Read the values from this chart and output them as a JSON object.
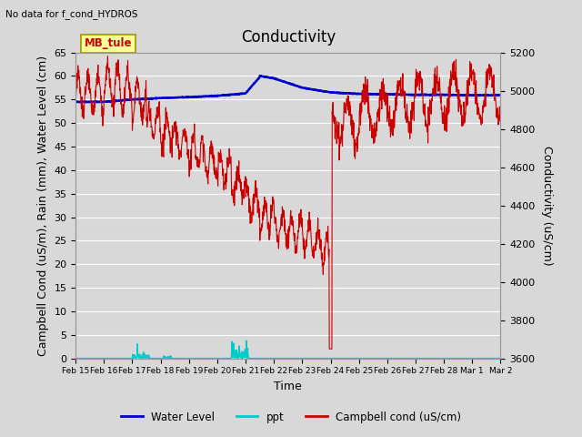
{
  "title": "Conductivity",
  "top_left_text": "No data for f_cond_HYDROS",
  "station_label": "MB_tule",
  "xlabel": "Time",
  "ylabel_left": "Campbell Cond (uS/m), Rain (mm), Water Level (cm)",
  "ylabel_right": "Conductivity (uS/cm)",
  "ylim_left": [
    0,
    65
  ],
  "ylim_right": [
    3600,
    5200
  ],
  "yticks_left": [
    0,
    5,
    10,
    15,
    20,
    25,
    30,
    35,
    40,
    45,
    50,
    55,
    60,
    65
  ],
  "yticks_right": [
    3600,
    3800,
    4000,
    4200,
    4400,
    4600,
    4800,
    5000,
    5200
  ],
  "xtick_labels": [
    "Feb 15",
    "Feb 16",
    "Feb 17",
    "Feb 18",
    "Feb 19",
    "Feb 20",
    "Feb 21",
    "Feb 22",
    "Feb 23",
    "Feb 24",
    "Feb 25",
    "Feb 26",
    "Feb 27",
    "Feb 28",
    "Mar 1",
    "Mar 2"
  ],
  "background_color": "#d8d8d8",
  "plot_bg_color": "#d8d8d8",
  "grid_color": "#ffffff",
  "water_level_color": "#0000cc",
  "ppt_color": "#00cccc",
  "campbell_color": "#cc0000",
  "legend_entries": [
    "Water Level",
    "ppt",
    "Campbell cond (uS/cm)"
  ],
  "title_fontsize": 12,
  "axis_label_fontsize": 9
}
